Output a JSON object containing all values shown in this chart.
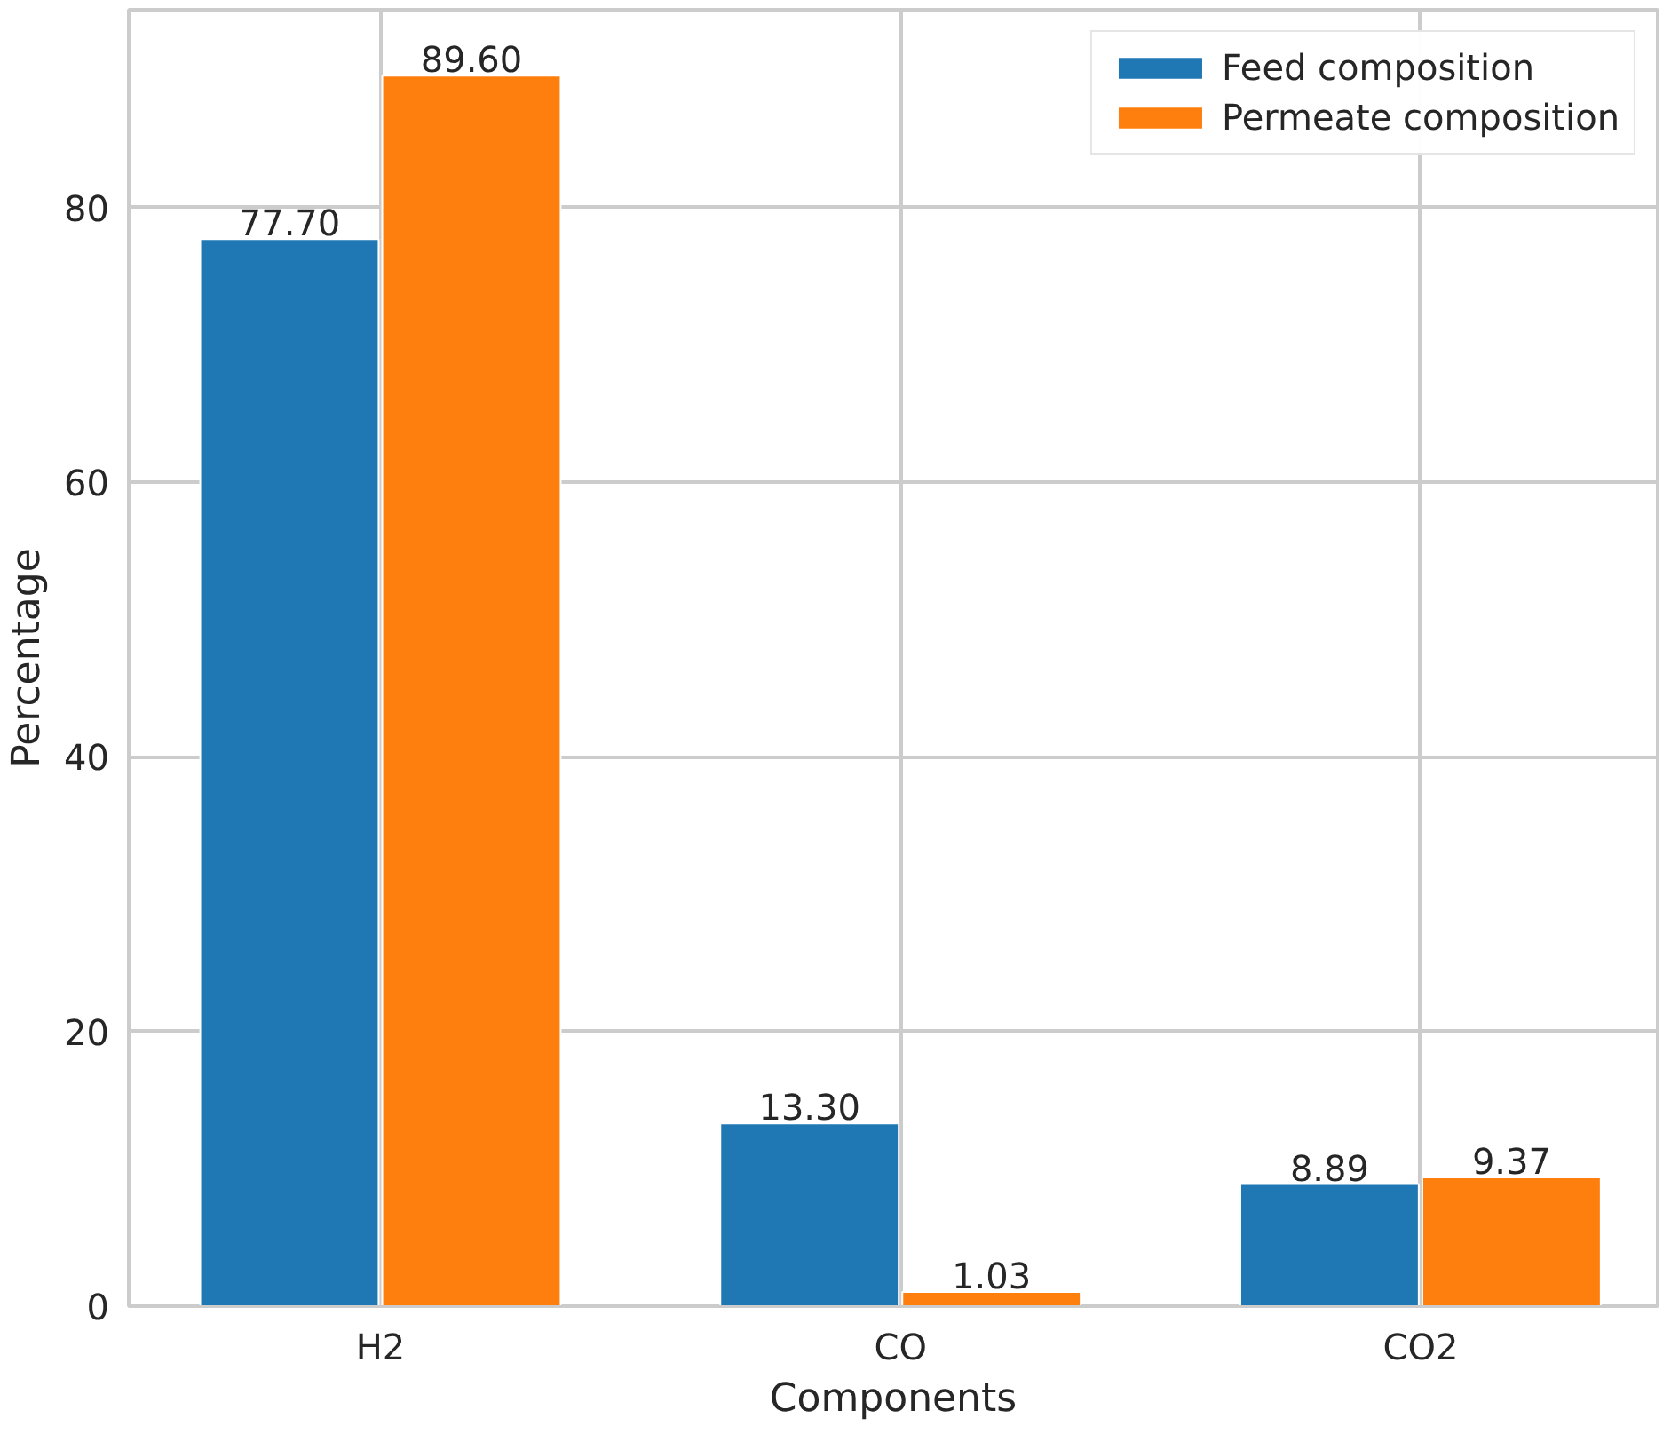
{
  "chart_data": {
    "type": "bar",
    "xlabel": "Components",
    "ylabel": "Percentage",
    "categories": [
      "H2",
      "CO",
      "CO2"
    ],
    "series": [
      {
        "name": "Feed composition",
        "color": "#1f77b4",
        "values": [
          77.7,
          13.3,
          8.89
        ],
        "value_labels": [
          "77.70",
          "13.30",
          "8.89"
        ]
      },
      {
        "name": "Permeate composition",
        "color": "#ff7f0e",
        "values": [
          89.6,
          1.03,
          9.37
        ],
        "value_labels": [
          "89.60",
          "1.03",
          "9.37"
        ]
      }
    ],
    "ylim": [
      0,
      94.4
    ],
    "yticks": [
      0,
      20,
      40,
      60,
      80
    ],
    "grid": true,
    "legend": "top right"
  }
}
